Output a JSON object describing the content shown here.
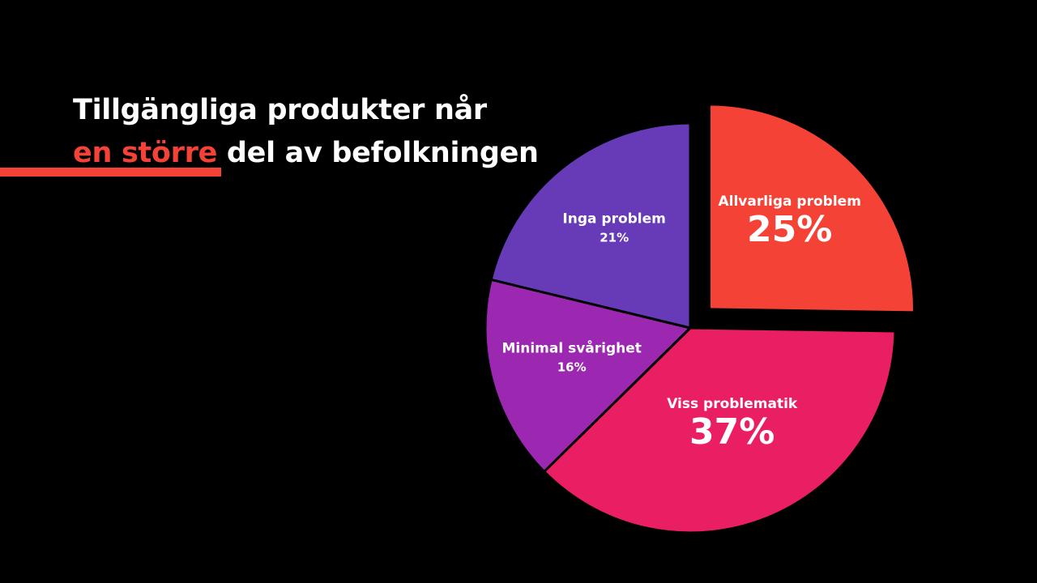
{
  "slide": {
    "title_part1": "Tillgängliga produkter når",
    "title_accent": "en större",
    "title_part2": " del av befolkningen"
  },
  "colors": {
    "background": "#000000",
    "accent": "#f44336",
    "text": "#ffffff"
  },
  "chart_data": {
    "type": "pie",
    "start_angle_deg": 0,
    "direction": "clockwise",
    "exploded": [
      "Allvarliga problem"
    ],
    "slices": [
      {
        "label": "Allvarliga problem",
        "value": 25,
        "display": "25%",
        "color": "#f44336"
      },
      {
        "label": "Viss problematik",
        "value": 37,
        "display": "37%",
        "color": "#e91e63"
      },
      {
        "label": "Minimal svårighet",
        "value": 16,
        "display": "16%",
        "color": "#9c27b0"
      },
      {
        "label": "Inga problem",
        "value": 21,
        "display": "21%",
        "color": "#673ab7"
      }
    ]
  }
}
